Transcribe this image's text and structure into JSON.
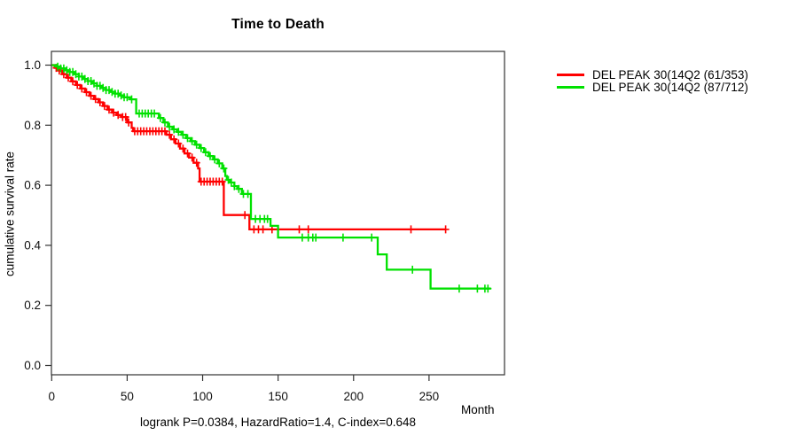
{
  "chart_data": {
    "type": "line",
    "subtype": "kaplan-meier-step",
    "title": "Time to Death",
    "xlabel": "Month",
    "ylabel": "cumulative survival rate",
    "annotation": "logrank P=0.0384, HazardRatio=1.4, C-index=0.648",
    "x_ticks": [
      0,
      50,
      100,
      150,
      200,
      250
    ],
    "y_ticks": [
      "0.0",
      "0.2",
      "0.4",
      "0.6",
      "0.8",
      "1.0"
    ],
    "xlim": [
      0,
      300
    ],
    "ylim": [
      0,
      1.0
    ],
    "grid": false,
    "legend_position": "right-outside",
    "axis_color": "#333333",
    "series": [
      {
        "name": "DEL PEAK 30(14Q2 (61/353)",
        "color": "#ff0000",
        "end_month": 261,
        "points": [
          [
            0,
            1.0
          ],
          [
            2,
            0.991
          ],
          [
            4,
            0.982
          ],
          [
            7,
            0.97
          ],
          [
            10,
            0.958
          ],
          [
            13,
            0.946
          ],
          [
            16,
            0.934
          ],
          [
            19,
            0.922
          ],
          [
            22,
            0.91
          ],
          [
            25,
            0.898
          ],
          [
            28,
            0.887
          ],
          [
            31,
            0.876
          ],
          [
            34,
            0.864
          ],
          [
            37,
            0.852
          ],
          [
            40,
            0.842
          ],
          [
            43,
            0.834
          ],
          [
            46,
            0.827
          ],
          [
            50,
            0.809
          ],
          [
            53,
            0.791
          ],
          [
            54,
            0.78
          ],
          [
            76,
            0.768
          ],
          [
            79,
            0.753
          ],
          [
            82,
            0.739
          ],
          [
            85,
            0.722
          ],
          [
            88,
            0.706
          ],
          [
            91,
            0.692
          ],
          [
            94,
            0.675
          ],
          [
            97,
            0.656
          ],
          [
            98,
            0.612
          ],
          [
            114,
            0.501
          ],
          [
            131,
            0.453
          ]
        ],
        "censor_months": [
          3,
          5,
          8,
          11,
          14,
          17,
          20,
          23,
          26,
          29,
          32,
          35,
          38,
          41,
          44,
          47,
          49,
          51,
          55,
          57,
          59,
          61,
          63,
          65,
          67,
          69,
          71,
          73,
          75,
          78,
          81,
          84,
          87,
          90,
          93,
          96,
          99,
          101,
          103,
          105,
          107,
          109,
          111,
          113,
          128,
          134,
          137,
          140,
          146,
          164,
          170,
          238,
          261
        ]
      },
      {
        "name": "DEL PEAK 30(14Q2 (87/712)",
        "color": "#00e100",
        "end_month": 291,
        "points": [
          [
            0,
            1.0
          ],
          [
            3,
            0.995
          ],
          [
            6,
            0.989
          ],
          [
            9,
            0.983
          ],
          [
            12,
            0.977
          ],
          [
            15,
            0.97
          ],
          [
            18,
            0.962
          ],
          [
            21,
            0.954
          ],
          [
            24,
            0.947
          ],
          [
            27,
            0.939
          ],
          [
            30,
            0.931
          ],
          [
            33,
            0.924
          ],
          [
            36,
            0.917
          ],
          [
            39,
            0.911
          ],
          [
            42,
            0.905
          ],
          [
            45,
            0.899
          ],
          [
            48,
            0.893
          ],
          [
            52,
            0.886
          ],
          [
            56,
            0.839
          ],
          [
            71,
            0.824
          ],
          [
            74,
            0.809
          ],
          [
            77,
            0.795
          ],
          [
            80,
            0.786
          ],
          [
            83,
            0.778
          ],
          [
            86,
            0.768
          ],
          [
            89,
            0.757
          ],
          [
            92,
            0.747
          ],
          [
            95,
            0.735
          ],
          [
            98,
            0.724
          ],
          [
            101,
            0.71
          ],
          [
            104,
            0.697
          ],
          [
            107,
            0.686
          ],
          [
            110,
            0.673
          ],
          [
            113,
            0.656
          ],
          [
            115,
            0.631
          ],
          [
            116,
            0.618
          ],
          [
            118,
            0.609
          ],
          [
            121,
            0.597
          ],
          [
            123,
            0.588
          ],
          [
            126,
            0.571
          ],
          [
            132,
            0.488
          ],
          [
            145,
            0.465
          ],
          [
            150,
            0.426
          ],
          [
            216,
            0.37
          ],
          [
            222,
            0.319
          ],
          [
            251,
            0.256
          ]
        ],
        "censor_months": [
          4,
          6,
          8,
          10,
          12,
          14,
          16,
          18,
          20,
          22,
          24,
          26,
          28,
          30,
          32,
          34,
          36,
          38,
          40,
          42,
          44,
          46,
          48,
          50,
          53,
          58,
          60,
          62,
          64,
          66,
          68,
          72,
          75,
          78,
          81,
          84,
          87,
          90,
          93,
          96,
          99,
          102,
          105,
          108,
          111,
          114,
          117,
          119,
          121,
          124,
          127,
          130,
          135,
          138,
          141,
          143,
          166,
          170,
          173,
          175,
          193,
          212,
          239,
          270,
          282,
          287,
          289
        ]
      }
    ]
  }
}
